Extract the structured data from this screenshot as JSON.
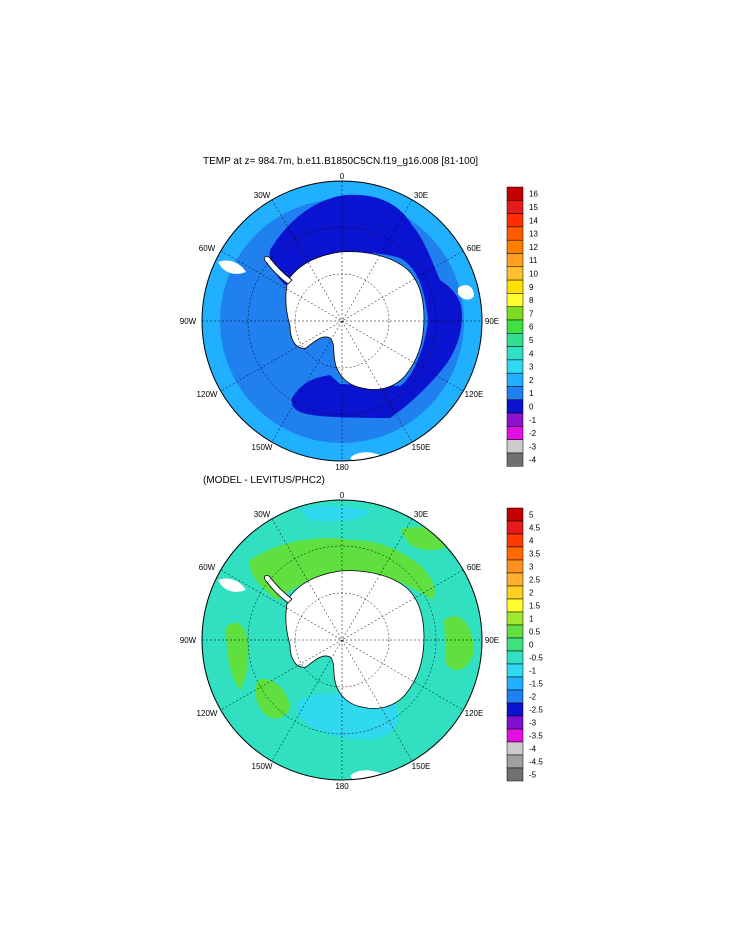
{
  "panels": [
    {
      "title": "TEMP at z= 984.7m, b.e11.B1850C5CN.f19_g16.008 [81-100]",
      "lon_labels": [
        "0",
        "30E",
        "60E",
        "90E",
        "120E",
        "150E",
        "180",
        "150W",
        "120W",
        "90W",
        "60W",
        "30W"
      ],
      "colorbar": {
        "labels": [
          "16",
          "15",
          "14",
          "13",
          "12",
          "11",
          "10",
          "9",
          "8",
          "7",
          "6",
          "5",
          "4",
          "3",
          "2",
          "1",
          "0",
          "-1",
          "-2",
          "-3",
          "-4"
        ],
        "colors": [
          "#c40000",
          "#e51b1b",
          "#ff2d00",
          "#ff5a00",
          "#ff7f00",
          "#ffa020",
          "#ffc030",
          "#ffe000",
          "#ffff30",
          "#7ddc20",
          "#40e040",
          "#30e090",
          "#30e0c0",
          "#30d8f0",
          "#20b0ff",
          "#2080f0",
          "#0a14d0",
          "#9010d0",
          "#e010e0",
          "#cccccc",
          "#707070"
        ]
      }
    },
    {
      "title": "(MODEL - LEVITUS/PHC2)",
      "lon_labels": [
        "0",
        "30E",
        "60E",
        "90E",
        "120E",
        "150E",
        "180",
        "150W",
        "120W",
        "90W",
        "60W",
        "30W"
      ],
      "colorbar": {
        "labels": [
          "5",
          "4.5",
          "4",
          "3.5",
          "3",
          "2.5",
          "2",
          "1.5",
          "1",
          "0.5",
          "0",
          "-0.5",
          "-1",
          "-1.5",
          "-2",
          "-2.5",
          "-3",
          "-3.5",
          "-4",
          "-4.5",
          "-5"
        ],
        "colors": [
          "#c40000",
          "#e51b1b",
          "#ff3a00",
          "#ff6a00",
          "#ff9020",
          "#ffb030",
          "#ffd020",
          "#ffff30",
          "#a0e830",
          "#60e040",
          "#40e080",
          "#30e0c0",
          "#30d8f0",
          "#20b0ff",
          "#2080f0",
          "#0a14d0",
          "#8010d0",
          "#e010e0",
          "#cccccc",
          "#a0a0a0",
          "#707070"
        ]
      }
    }
  ],
  "colors": {
    "land": "#ffffff",
    "coast": "#000000",
    "top_deep": "#2080f0",
    "top_shelf": "#0a14d0",
    "top_north": "#20b0ff",
    "bot_base": "#30e0c0",
    "bot_warm": "#60e040",
    "bot_cool": "#30d8f0"
  }
}
